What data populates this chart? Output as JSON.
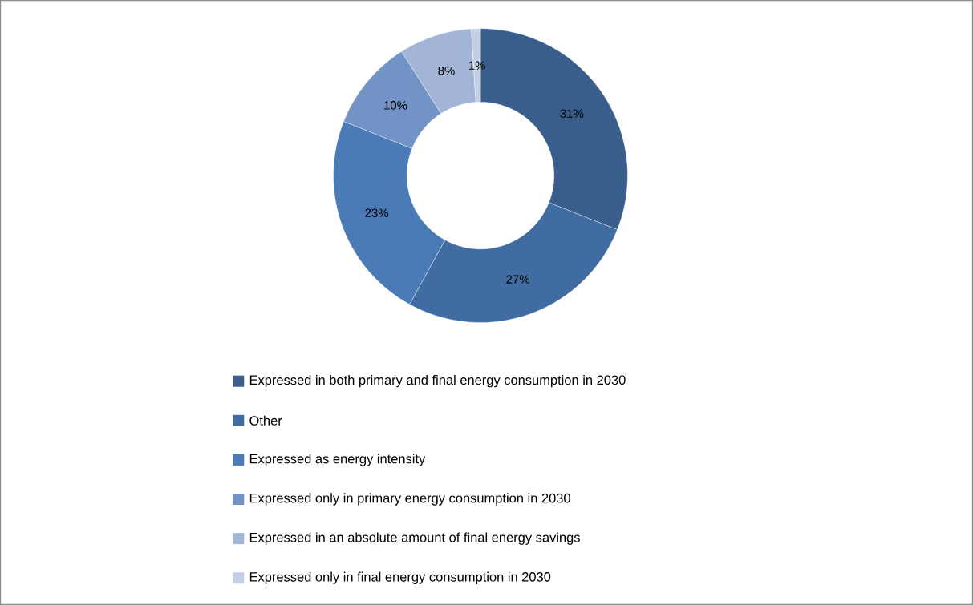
{
  "chart_data": {
    "type": "donut",
    "categories": [
      "Expressed in both primary and final energy consumption in 2030",
      "Other",
      "Expressed as energy intensity",
      "Expressed only in primary energy consumption in 2030",
      "Expressed in an absolute amount of final energy savings",
      "Expressed only in final energy consumption in 2030"
    ],
    "values": [
      31,
      27,
      23,
      10,
      8,
      1
    ],
    "colors": [
      "#3a5e8c",
      "#416ca1",
      "#4a7bb7",
      "#7293c6",
      "#a2b5d7",
      "#c4d0e6"
    ],
    "value_labels": [
      "31%",
      "27%",
      "23%",
      "10%",
      "8%",
      "1%"
    ],
    "legend": "bottom"
  }
}
